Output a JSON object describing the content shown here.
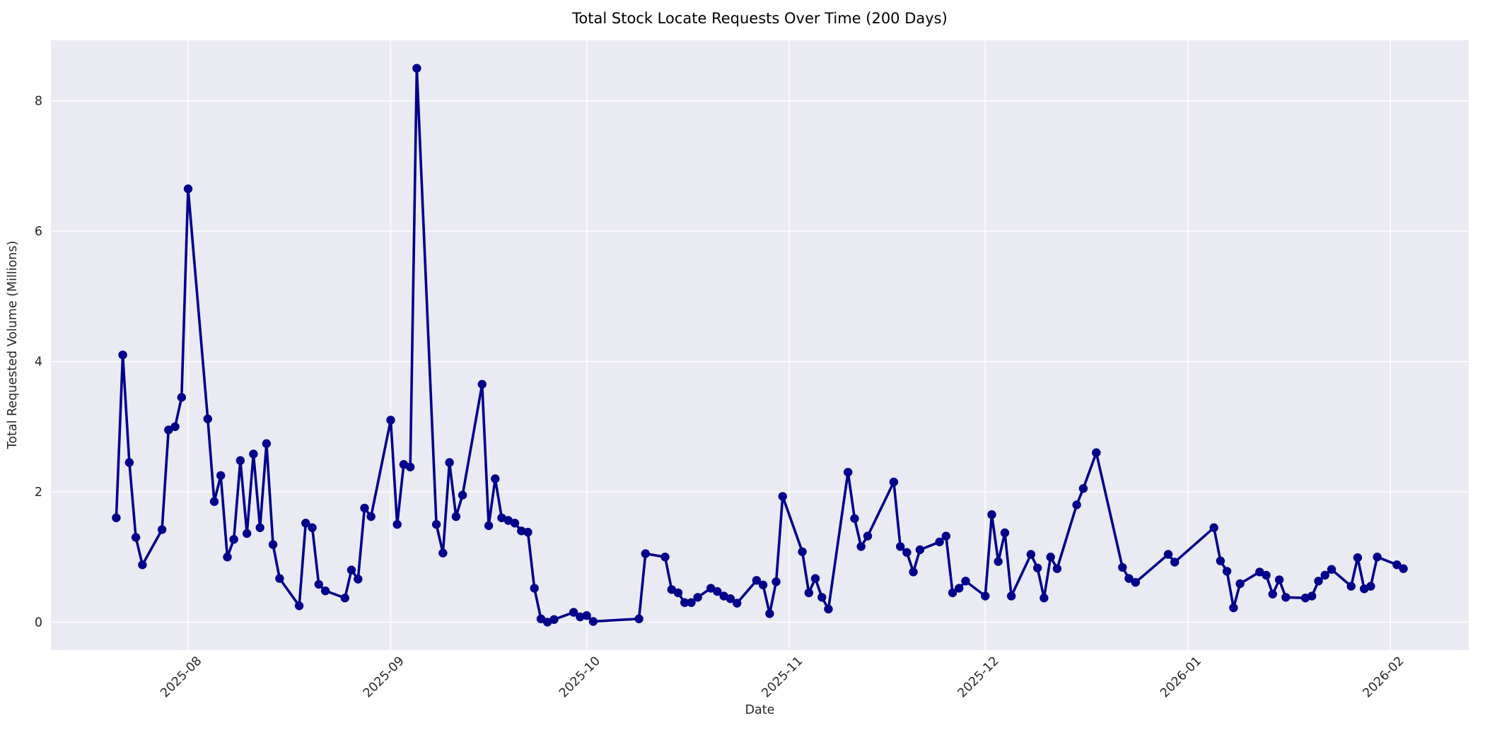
{
  "chart_data": {
    "type": "line",
    "title": "Total Stock Locate Requests Over Time (200 Days)",
    "xlabel": "Date",
    "ylabel": "Total Requested Volume (Millions)",
    "series": [
      {
        "name": "total-requested-volume",
        "x": [
          "2025-07-21",
          "2025-07-22",
          "2025-07-23",
          "2025-07-24",
          "2025-07-25",
          "2025-07-28",
          "2025-07-29",
          "2025-07-30",
          "2025-07-31",
          "2025-08-01",
          "2025-08-04",
          "2025-08-05",
          "2025-08-06",
          "2025-08-07",
          "2025-08-08",
          "2025-08-09",
          "2025-08-10",
          "2025-08-11",
          "2025-08-12",
          "2025-08-13",
          "2025-08-14",
          "2025-08-15",
          "2025-08-18",
          "2025-08-19",
          "2025-08-20",
          "2025-08-21",
          "2025-08-22",
          "2025-08-25",
          "2025-08-26",
          "2025-08-27",
          "2025-08-28",
          "2025-08-29",
          "2025-09-01",
          "2025-09-02",
          "2025-09-03",
          "2025-09-04",
          "2025-09-05",
          "2025-09-08",
          "2025-09-09",
          "2025-09-10",
          "2025-09-11",
          "2025-09-12",
          "2025-09-15",
          "2025-09-16",
          "2025-09-17",
          "2025-09-18",
          "2025-09-19",
          "2025-09-20",
          "2025-09-21",
          "2025-09-22",
          "2025-09-23",
          "2025-09-24",
          "2025-09-25",
          "2025-09-26",
          "2025-09-29",
          "2025-09-30",
          "2025-10-01",
          "2025-10-02",
          "2025-10-09",
          "2025-10-10",
          "2025-10-13",
          "2025-10-14",
          "2025-10-15",
          "2025-10-16",
          "2025-10-17",
          "2025-10-18",
          "2025-10-20",
          "2025-10-21",
          "2025-10-22",
          "2025-10-23",
          "2025-10-24",
          "2025-10-27",
          "2025-10-28",
          "2025-10-29",
          "2025-10-30",
          "2025-10-31",
          "2025-11-03",
          "2025-11-04",
          "2025-11-05",
          "2025-11-06",
          "2025-11-07",
          "2025-11-10",
          "2025-11-11",
          "2025-11-12",
          "2025-11-13",
          "2025-11-17",
          "2025-11-18",
          "2025-11-19",
          "2025-11-20",
          "2025-11-21",
          "2025-11-24",
          "2025-11-25",
          "2025-11-26",
          "2025-11-27",
          "2025-11-28",
          "2025-12-01",
          "2025-12-02",
          "2025-12-03",
          "2025-12-04",
          "2025-12-05",
          "2025-12-08",
          "2025-12-09",
          "2025-12-10",
          "2025-12-11",
          "2025-12-12",
          "2025-12-15",
          "2025-12-16",
          "2025-12-18",
          "2025-12-22",
          "2025-12-23",
          "2025-12-24",
          "2025-12-29",
          "2025-12-30",
          "2026-01-05",
          "2026-01-06",
          "2026-01-07",
          "2026-01-08",
          "2026-01-09",
          "2026-01-12",
          "2026-01-13",
          "2026-01-14",
          "2026-01-15",
          "2026-01-16",
          "2026-01-19",
          "2026-01-20",
          "2026-01-21",
          "2026-01-22",
          "2026-01-23",
          "2026-01-26",
          "2026-01-27",
          "2026-01-28",
          "2026-01-29",
          "2026-01-30",
          "2026-02-02",
          "2026-02-03"
        ],
        "values": [
          1.6,
          4.1,
          2.45,
          1.3,
          0.88,
          1.42,
          2.95,
          3.0,
          3.45,
          6.65,
          3.12,
          1.85,
          2.25,
          1.0,
          1.27,
          2.48,
          1.36,
          2.58,
          1.45,
          2.74,
          1.19,
          0.67,
          0.25,
          1.52,
          1.45,
          0.58,
          0.48,
          0.37,
          0.8,
          0.66,
          1.75,
          1.62,
          3.1,
          1.5,
          2.42,
          2.38,
          8.5,
          1.5,
          1.06,
          2.45,
          1.62,
          1.95,
          3.65,
          1.48,
          2.2,
          1.6,
          1.56,
          1.52,
          1.4,
          1.38,
          0.52,
          0.05,
          0.0,
          0.04,
          0.15,
          0.08,
          0.1,
          0.01,
          0.05,
          1.05,
          1.0,
          0.5,
          0.45,
          0.3,
          0.3,
          0.38,
          0.52,
          0.47,
          0.4,
          0.36,
          0.29,
          0.64,
          0.57,
          0.13,
          0.62,
          1.93,
          1.08,
          0.45,
          0.67,
          0.38,
          0.2,
          2.3,
          1.59,
          1.16,
          1.32,
          2.15,
          1.16,
          1.07,
          0.77,
          1.11,
          1.23,
          1.32,
          0.45,
          0.52,
          0.63,
          0.4,
          1.65,
          0.93,
          1.37,
          0.4,
          1.04,
          0.83,
          0.37,
          1.0,
          0.82,
          1.8,
          2.05,
          2.6,
          0.84,
          0.67,
          0.61,
          1.04,
          0.92,
          1.45,
          0.94,
          0.78,
          0.22,
          0.59,
          0.77,
          0.72,
          0.43,
          0.65,
          0.38,
          0.37,
          0.4,
          0.63,
          0.72,
          0.81,
          0.55,
          0.99,
          0.51,
          0.55,
          1.0,
          0.88,
          0.82
        ]
      }
    ],
    "x_ticks": [
      {
        "date": "2025-08-01",
        "label": "2025-08"
      },
      {
        "date": "2025-09-01",
        "label": "2025-09"
      },
      {
        "date": "2025-10-01",
        "label": "2025-10"
      },
      {
        "date": "2025-11-01",
        "label": "2025-11"
      },
      {
        "date": "2025-12-01",
        "label": "2025-12"
      },
      {
        "date": "2026-01-01",
        "label": "2026-01"
      },
      {
        "date": "2026-02-01",
        "label": "2026-02"
      }
    ],
    "y_ticks": [
      0,
      2,
      4,
      6,
      8
    ],
    "xlim": [
      "2025-07-11",
      "2026-02-13"
    ],
    "ylim": [
      -0.43,
      8.93
    ],
    "grid": true,
    "legend_position": "none",
    "colors": {
      "line": "#00008b",
      "marker": "#00008b",
      "plot_bg": "#eaeaf2",
      "grid": "#ffffff",
      "tick_text": "#262626",
      "title_text": "#000000",
      "figure_bg": "#ffffff"
    }
  }
}
